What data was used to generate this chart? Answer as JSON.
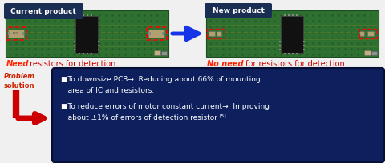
{
  "bg_color": "#f0f0f0",
  "current_product_label": "Current product",
  "new_product_label": "New product",
  "label_bg": "#1a2d52",
  "label_text_color": "#ffffff",
  "current_caption_need": "Need",
  "current_caption_rest": " resistors for detection",
  "new_caption_noneed": "No need",
  "new_caption_rest": " for resistors for detection",
  "caption_red": "#ff2200",
  "caption_dark": "#cc0000",
  "problem_text": "Problem",
  "solution_text": "solution",
  "problem_color": "#cc2200",
  "solution_color": "#cc2200",
  "box_bg": "#0d1f5c",
  "box_text_color": "#ffffff",
  "bullet1_line1": "■To downsize PCB→  Reducing about 66% of mounting",
  "bullet1_line2": "   area of IC and resistors.",
  "bullet2_line1": "■To reduce errors of motor constant current→  Improving",
  "bullet2_line2": "   about ±1% of errors of detection resistor",
  "superscript": "[5]",
  "arrow_blue": "#1533e8",
  "red_arrow_color": "#cc0000",
  "pcb_green": "#2d7030",
  "pcb_dark": "#1e4c22",
  "pcb_mid": "#3a8040",
  "ic_color": "#111111",
  "resistor_color": "#b0a070",
  "trace_color": "#c8a020",
  "dashed_red": "#ff0000"
}
